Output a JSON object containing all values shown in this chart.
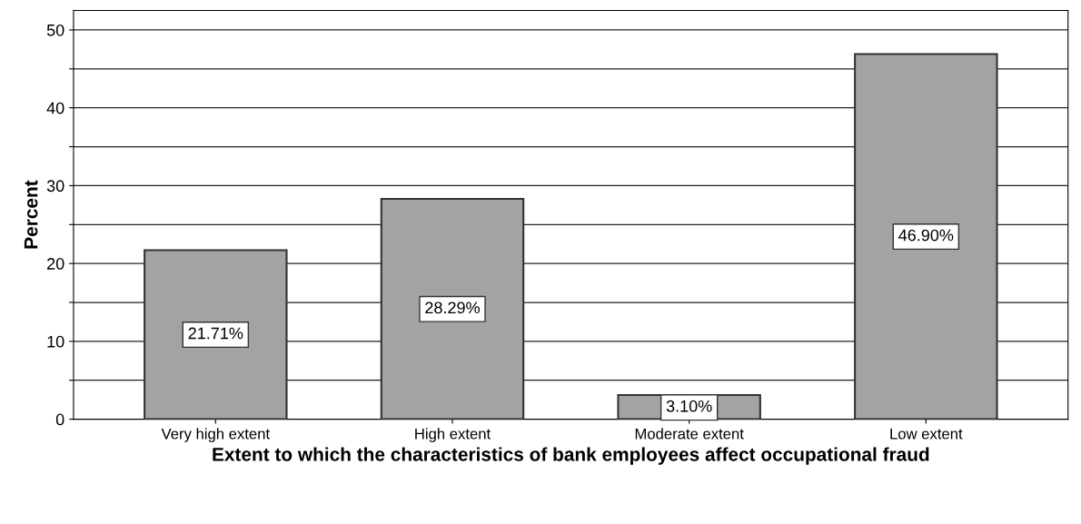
{
  "chart_data": {
    "type": "bar",
    "xlabel": "Extent to which the characteristics of bank employees affect occupational fraud",
    "ylabel": "Percent",
    "categories": [
      "Very high extent",
      "High extent",
      "Moderate extent",
      "Low extent"
    ],
    "values": [
      21.71,
      28.29,
      3.1,
      46.9
    ],
    "value_labels": [
      "21.71%",
      "28.29%",
      "3.10%",
      "46.90%"
    ],
    "color": "#a3a3a3",
    "ylim": [
      0,
      52.5
    ],
    "yticks": [
      0,
      {
        "value": 5,
        "label": null
      },
      10,
      {
        "value": 15,
        "label": null
      },
      20,
      {
        "value": 25,
        "label": null
      },
      30,
      {
        "value": 35,
        "label": null
      },
      40,
      {
        "value": 45,
        "label": null
      },
      50
    ],
    "grid": "y"
  }
}
